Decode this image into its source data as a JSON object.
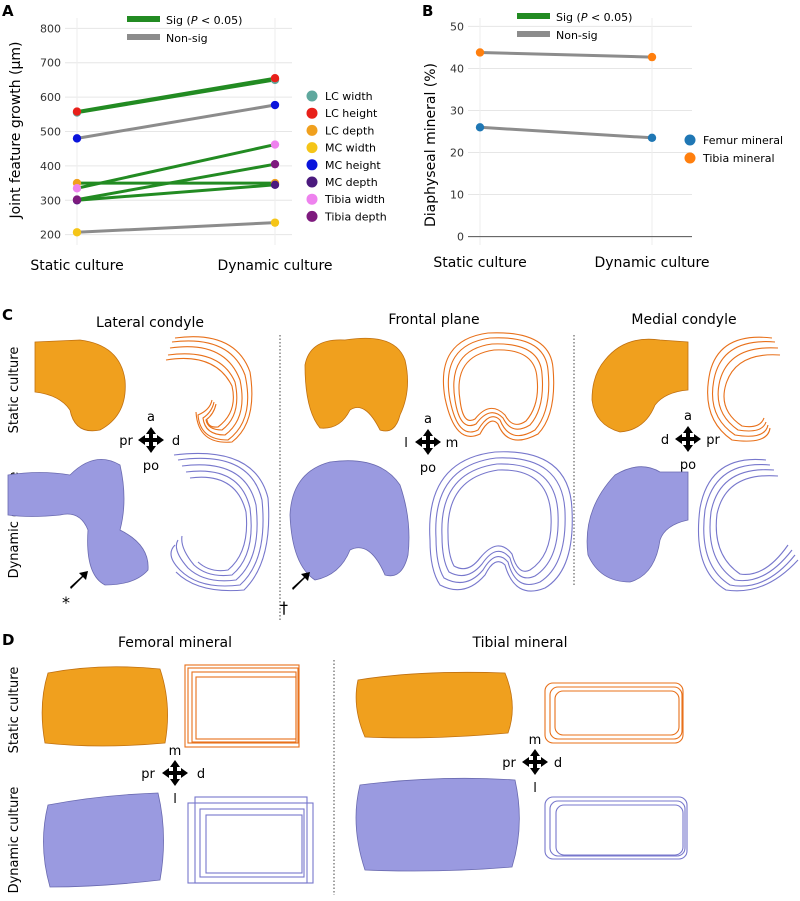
{
  "colors": {
    "sig": "#228B22",
    "nonsig": "#8c8c8c",
    "static": "#F0A01E",
    "dynamic": "#9A9AE0",
    "static_outline": "#E8701A",
    "dynamic_outline": "#7777CC"
  },
  "panelA": {
    "letter": "A",
    "legend_sig_prefix": "Sig (",
    "legend_sig_p": "P",
    "legend_sig_suffix": " < 0.05)",
    "legend_nonsig": "Non-sig",
    "chart_data": {
      "type": "line",
      "ylabel": "Joint feature growth (μm)",
      "categories": [
        "Static culture",
        "Dynamic culture"
      ],
      "ylim": [
        170,
        830
      ],
      "yticks": [
        200,
        300,
        400,
        500,
        600,
        700,
        800
      ],
      "grid": true,
      "legend_position": "right",
      "series": [
        {
          "name": "LC width",
          "color": "#5FA89E",
          "values": [
            555,
            650
          ],
          "sig": true
        },
        {
          "name": "LC height",
          "color": "#E8201A",
          "values": [
            558,
            655
          ],
          "sig": true
        },
        {
          "name": "LC depth",
          "color": "#F0A01E",
          "values": [
            350,
            350
          ],
          "sig": true
        },
        {
          "name": "MC width",
          "color": "#F5C518",
          "values": [
            207,
            235
          ],
          "sig": false
        },
        {
          "name": "MC height",
          "color": "#0A14DC",
          "values": [
            480,
            577
          ],
          "sig": false
        },
        {
          "name": "MC depth",
          "color": "#4B1A7E",
          "values": [
            300,
            345
          ],
          "sig": true
        },
        {
          "name": "Tibia width",
          "color": "#EE82EE",
          "values": [
            335,
            462
          ],
          "sig": true
        },
        {
          "name": "Tibia depth",
          "color": "#7E1A7E",
          "values": [
            302,
            405
          ],
          "sig": true
        }
      ]
    }
  },
  "panelB": {
    "letter": "B",
    "legend_sig_prefix": "Sig (",
    "legend_sig_p": "P",
    "legend_sig_suffix": " < 0.05)",
    "legend_nonsig": "Non-sig",
    "chart_data": {
      "type": "line",
      "ylabel": "Diaphyseal mineral (%)",
      "categories": [
        "Static culture",
        "Dynamic culture"
      ],
      "ylim": [
        -2,
        52
      ],
      "yticks": [
        0,
        10,
        20,
        30,
        40,
        50
      ],
      "grid": true,
      "legend_position": "right",
      "series": [
        {
          "name": "Femur mineral",
          "color": "#1F77B4",
          "values": [
            26,
            23.5
          ],
          "sig": false
        },
        {
          "name": "Tibia mineral",
          "color": "#FF7F0E",
          "values": [
            43.8,
            42.7
          ],
          "sig": false
        }
      ]
    }
  },
  "panelC": {
    "letter": "C",
    "titles": [
      "Lateral condyle",
      "Frontal plane",
      "Medial condyle"
    ],
    "row_labels": [
      "Static culture",
      "Dynamic culture"
    ],
    "axes": [
      {
        "top": "a",
        "bottom": "po",
        "left": "pr",
        "right": "d"
      },
      {
        "top": "a",
        "bottom": "po",
        "left": "l",
        "right": "m"
      },
      {
        "top": "a",
        "bottom": "po",
        "left": "d",
        "right": "pr"
      }
    ],
    "markers": [
      "*",
      "†"
    ]
  },
  "panelD": {
    "letter": "D",
    "titles": [
      "Femoral mineral",
      "Tibial mineral"
    ],
    "row_labels": [
      "Static culture",
      "Dynamic culture"
    ],
    "axes": [
      {
        "top": "m",
        "bottom": "l",
        "left": "pr",
        "right": "d"
      },
      {
        "top": "m",
        "bottom": "l",
        "left": "pr",
        "right": "d"
      }
    ]
  }
}
